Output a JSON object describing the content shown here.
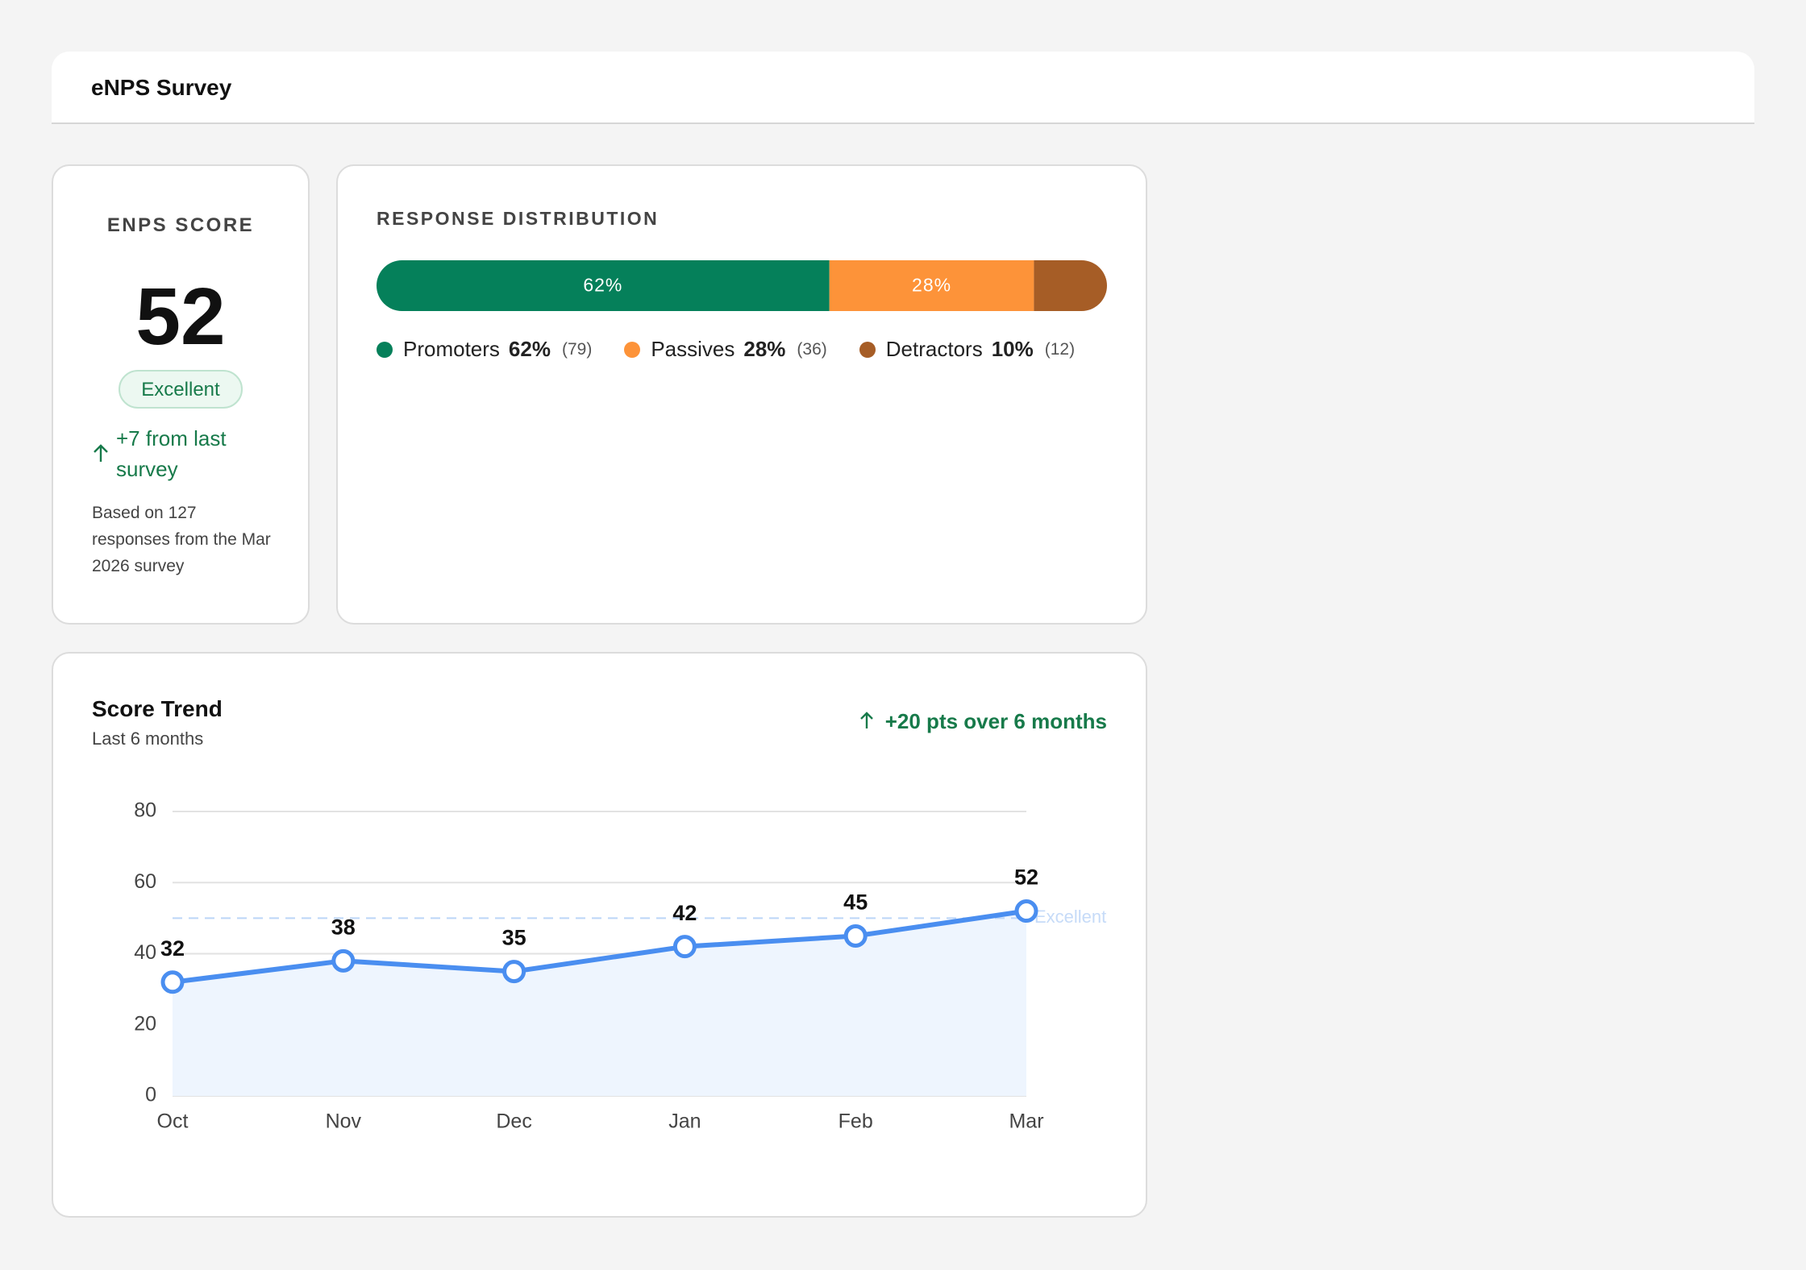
{
  "header": {
    "title": "eNPS Survey"
  },
  "score": {
    "label": "ENPS SCORE",
    "value": 52,
    "badge": "Excellent",
    "change": "+7 from last survey",
    "note": "Based on 127 responses from the Mar 2026 survey"
  },
  "distribution": {
    "title": "RESPONSE DISTRIBUTION",
    "segments": [
      {
        "name": "Promoters",
        "color": "#05805a",
        "value": 62,
        "value_label": "62%",
        "count_label": "(79)"
      },
      {
        "name": "Passives",
        "color": "#fd9339",
        "value": 28,
        "value_label": "28%",
        "count_label": "(36)"
      },
      {
        "name": "Detractors",
        "color": "#a65d26",
        "value": 10,
        "value_label": "10%",
        "count_label": "(12)"
      }
    ]
  },
  "chart_data": {
    "type": "line",
    "title": "Score Trend",
    "subtitle": "Last 6 months",
    "annotation": "+20 pts over 6 months",
    "categories": [
      "Oct",
      "Nov",
      "Dec",
      "Jan",
      "Feb",
      "Mar"
    ],
    "values": [
      32,
      38,
      35,
      42,
      45,
      52
    ],
    "color": "#4a8ef0",
    "area_color": "#eef5fe",
    "ylim": [
      0,
      80
    ],
    "yticks": [
      0,
      20,
      40,
      60,
      80
    ],
    "grid": true,
    "reference": {
      "value": 50,
      "label": "Excellent"
    }
  }
}
